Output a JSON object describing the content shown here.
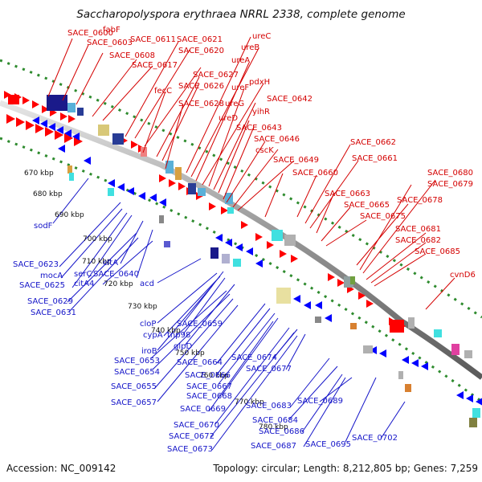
{
  "title": "Saccharopolyspora erythraea NRRL 2338, complete genome",
  "footer": {
    "accession": "Accession: NC_009142",
    "topology": "Topology: circular; Length: 8,212,805 bp; Genes: 7,259"
  },
  "colors": {
    "forward_gene": "#ff0000",
    "reverse_gene": "#0000ff",
    "forward_label": "#d40000",
    "reverse_label": "#1414c8",
    "backbone": "#8c8c8c",
    "track_dots": "#2e8b2e"
  },
  "kbp_ticks": [
    "670 kbp",
    "680 kbp",
    "690 kbp",
    "700 kbp",
    "710 kbp",
    "720 kbp",
    "730 kbp",
    "740 kbp",
    "750 kbp",
    "760 kbp",
    "770 kbp",
    "780 kbp"
  ],
  "forward_labels": [
    "SACE_0600",
    "fabF",
    "SACE_0603",
    "SACE_0611",
    "SACE_0621",
    "SACE_0608",
    "SACE_0620",
    "SACE_0617",
    "SACE_0627",
    "SACE_0626",
    "fecC",
    "SACE_0628",
    "ureC",
    "ureB",
    "ureA",
    "pdxH",
    "ureF",
    "ureG",
    "SACE_0642",
    "yihR",
    "ureD",
    "SACE_0643",
    "SACE_0646",
    "cscK",
    "SACE_0649",
    "SACE_0660",
    "SACE_0662",
    "SACE_0661",
    "SACE_0663",
    "SACE_0665",
    "SACE_0675",
    "SACE_0678",
    "SACE_0679",
    "SACE_0680",
    "SACE_0681",
    "SACE_0682",
    "SACE_0685",
    "cvnD6"
  ],
  "reverse_labels": [
    "sodF",
    "SACE_0623",
    "mocA",
    "SACE_0625",
    "serC",
    "citA",
    "citA4",
    "SACE_0640",
    "SACE_0629",
    "SACE_0631",
    "acd",
    "cloP",
    "cypA",
    "tnp98",
    "SACE_0659",
    "glpD",
    "iroB",
    "SACE_0653",
    "SACE_0654",
    "SACE_0655",
    "SACE_0657",
    "SACE_0664",
    "SACE_0666",
    "SACE_0667",
    "SACE_0668",
    "SACE_0669",
    "SACE_0670",
    "SACE_0672",
    "SACE_0673",
    "SACE_0674",
    "SACE_0677",
    "SACE_0683",
    "SACE_0684",
    "SACE_0686",
    "SACE_0687",
    "SACE_0689",
    "SACE_0695",
    "SACE_0702"
  ]
}
